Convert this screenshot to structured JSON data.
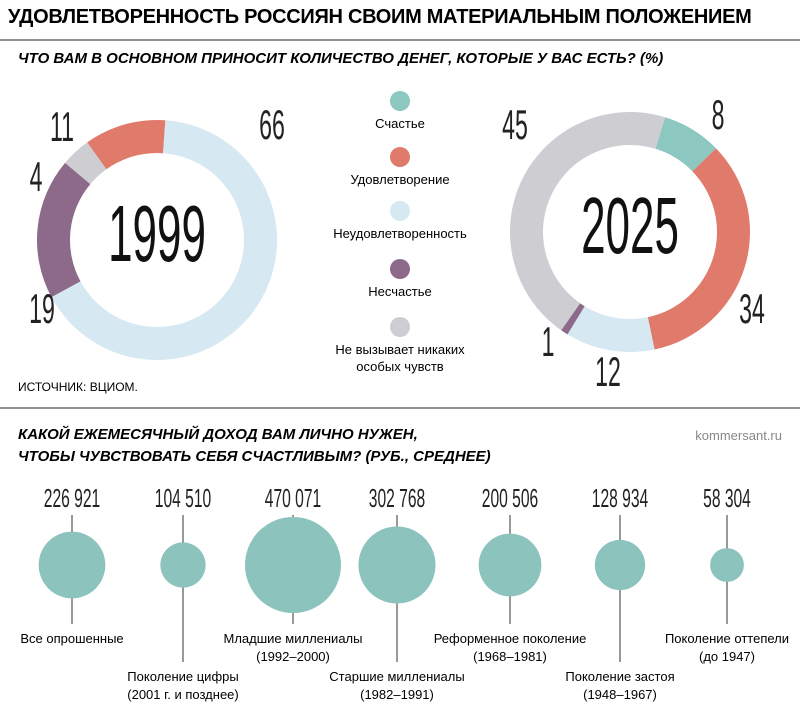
{
  "title": "УДОВЛЕТВОРЕННОСТЬ РОССИЯН СВОИМ МАТЕРИАЛЬНЫМ ПОЛОЖЕНИЕМ",
  "source": "ИСТОЧНИК: ВЦИОМ.",
  "credit": "kommersant.ru",
  "chart_data": [
    {
      "type": "donut",
      "subtitle": "ЧТО ВАМ В ОСНОВНОМ ПРИНОСИТ КОЛИЧЕСТВО ДЕНЕГ, КОТОРЫЕ У ВАС ЕСТЬ? (%)",
      "center_label": "1999",
      "categories": [
        "Счастье",
        "Удовлетворение",
        "Неудовлетворенность",
        "Несчастье",
        "Не вызывает никаких особых чувств"
      ],
      "colors": [
        "#8cc7c0",
        "#e07a6a",
        "#d6e8f2",
        "#8d6a8a",
        "#cdcdd2"
      ],
      "values": [
        null,
        11,
        66,
        19,
        4
      ]
    },
    {
      "type": "donut",
      "center_label": "2025",
      "categories": [
        "Счастье",
        "Удовлетворение",
        "Неудовлетворенность",
        "Несчастье",
        "Не вызывает никаких особых чувств"
      ],
      "colors": [
        "#8cc7c0",
        "#e07a6a",
        "#d6e8f2",
        "#8d6a8a",
        "#cdcdd2"
      ],
      "values": [
        8,
        34,
        12,
        1,
        45
      ]
    },
    {
      "type": "bubble",
      "subtitle": "КАКОЙ ЕЖЕМЕСЯЧНЫЙ ДОХОД ВАМ ЛИЧНО НУЖЕН,\nЧТОБЫ ЧУВСТВОВАТЬ СЕБЯ СЧАСТЛИВЫМ? (РУБ., СРЕДНЕЕ)",
      "color": "#8cc3bd",
      "categories": [
        "Все опрошенные",
        "Поколение цифры\n(2001 г. и позднее)",
        "Младшие миллениалы\n(1992–2000)",
        "Старшие миллениалы\n(1982–1991)",
        "Реформенное поколение\n(1968–1981)",
        "Поколение застоя\n(1948–1967)",
        "Поколение оттепели\n(до 1947)"
      ],
      "values": [
        226921,
        104510,
        470071,
        302768,
        200506,
        128934,
        58304
      ],
      "value_labels": [
        "226 921",
        "104 510",
        "470 071",
        "302 768",
        "200 506",
        "128 934",
        "58 304"
      ]
    }
  ]
}
